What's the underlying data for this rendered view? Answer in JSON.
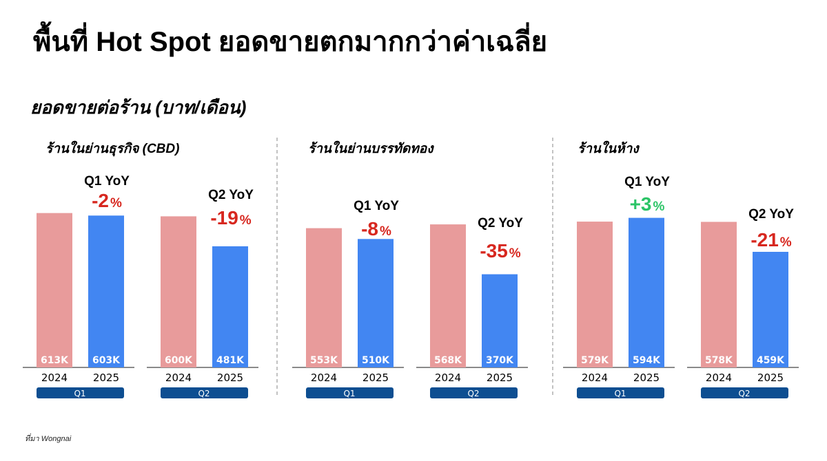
{
  "title": "พื้นที่ Hot Spot ยอดขายตกมากกว่าค่าเฉลี่ย",
  "subtitle": "ยอดขายต่อร้าน  (บาท/เดือน)",
  "source": "ที่มา Wongnai",
  "colors": {
    "y2024": "#E89B9B",
    "y2025": "#4286F2",
    "negative": "#D7271F",
    "positive": "#2BC466",
    "pill": "#0D4E91"
  },
  "chart_data": [
    {
      "type": "bar",
      "title": "ร้านในย่านธุรกิจ  (CBD)",
      "categories": [
        "2024",
        "2025"
      ],
      "groups": [
        {
          "quarter": "Q1",
          "values": [
            613,
            603
          ],
          "labels": [
            "613K",
            "603K"
          ],
          "yoy_label": "Q1 YoY",
          "yoy": "-2",
          "unit": "%"
        },
        {
          "quarter": "Q2",
          "values": [
            600,
            481
          ],
          "labels": [
            "600K",
            "481K"
          ],
          "yoy_label": "Q2 YoY",
          "yoy": "-19",
          "unit": "%"
        }
      ]
    },
    {
      "type": "bar",
      "title": "ร้านในย่านบรรทัดทอง",
      "categories": [
        "2024",
        "2025"
      ],
      "groups": [
        {
          "quarter": "Q1",
          "values": [
            553,
            510
          ],
          "labels": [
            "553K",
            "510K"
          ],
          "yoy_label": "Q1 YoY",
          "yoy": "-8",
          "unit": "%"
        },
        {
          "quarter": "Q2",
          "values": [
            568,
            370
          ],
          "labels": [
            "568K",
            "370K"
          ],
          "yoy_label": "Q2 YoY",
          "yoy": "-35",
          "unit": "%"
        }
      ]
    },
    {
      "type": "bar",
      "title": "ร้านในห้าง",
      "categories": [
        "2024",
        "2025"
      ],
      "groups": [
        {
          "quarter": "Q1",
          "values": [
            579,
            594
          ],
          "labels": [
            "579K",
            "594K"
          ],
          "yoy_label": "Q1 YoY",
          "yoy": "+3",
          "unit": "%"
        },
        {
          "quarter": "Q2",
          "values": [
            578,
            459
          ],
          "labels": [
            "578K",
            "459K"
          ],
          "yoy_label": "Q2 YoY",
          "yoy": "-21",
          "unit": "%"
        }
      ]
    }
  ]
}
